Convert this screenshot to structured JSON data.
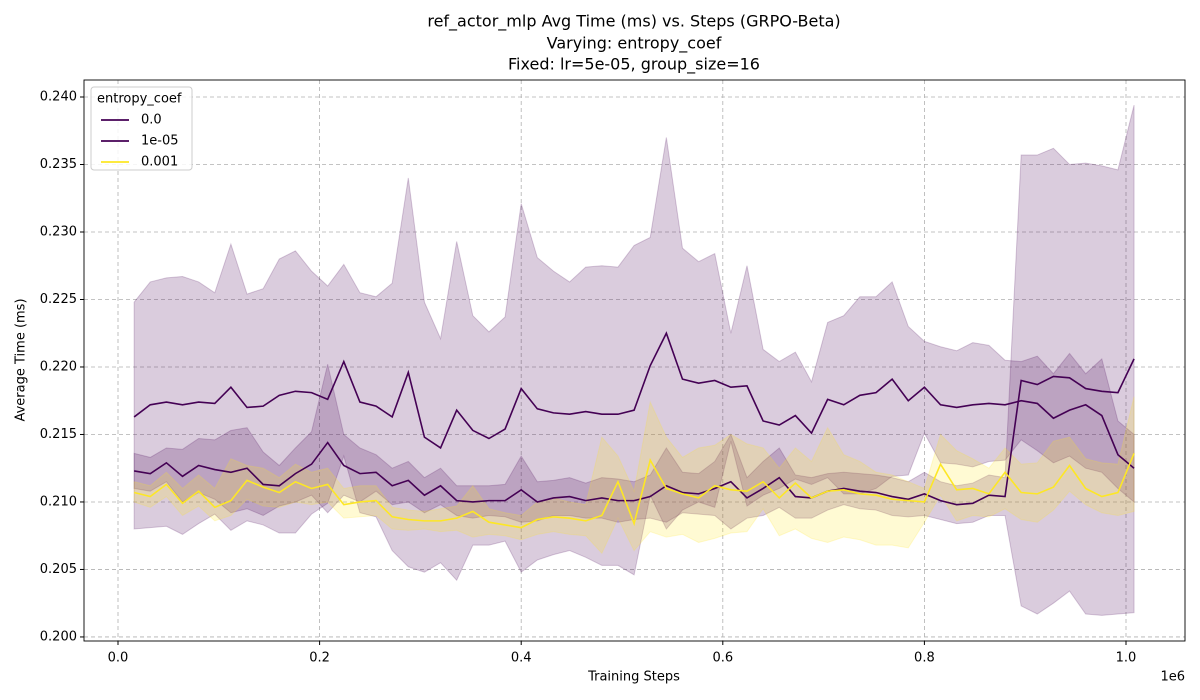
{
  "chart_data": {
    "type": "band-line",
    "title": "ref_actor_mlp Avg Time (ms) vs. Steps (GRPO-Beta)",
    "subtitle": "Varying: entropy_coef",
    "subtitle2": "Fixed: lr=5e-05, group_size=16",
    "x_label": "Training Steps",
    "y_label": "Average Time (ms)",
    "x_offset_label": "1e6",
    "legend_title": "entropy_coef",
    "legend_position": "upper left",
    "grid": true,
    "band_opacity": 0.2,
    "xlim": [
      -33730,
      1058530
    ],
    "ylim": [
      0.1997,
      0.24126
    ],
    "xticks": [
      {
        "value": 0,
        "label": "0.0"
      },
      {
        "value": 200000,
        "label": "0.2"
      },
      {
        "value": 400000,
        "label": "0.4"
      },
      {
        "value": 600000,
        "label": "0.6"
      },
      {
        "value": 800000,
        "label": "0.8"
      },
      {
        "value": 1000000,
        "label": "1.0"
      }
    ],
    "yticks": [
      {
        "value": 0.2,
        "label": "0.200"
      },
      {
        "value": 0.205,
        "label": "0.205"
      },
      {
        "value": 0.21,
        "label": "0.210"
      },
      {
        "value": 0.215,
        "label": "0.215"
      },
      {
        "value": 0.22,
        "label": "0.220"
      },
      {
        "value": 0.225,
        "label": "0.225"
      },
      {
        "value": 0.23,
        "label": "0.230"
      },
      {
        "value": 0.235,
        "label": "0.235"
      },
      {
        "value": 0.24,
        "label": "0.240"
      }
    ],
    "x": [
      16000,
      32000,
      48000,
      64000,
      80000,
      96000,
      112000,
      128000,
      144000,
      160000,
      176000,
      192000,
      208000,
      224000,
      240000,
      256000,
      272000,
      288000,
      304000,
      320000,
      336000,
      352000,
      368000,
      384000,
      400000,
      416000,
      432000,
      448000,
      464000,
      480000,
      496000,
      512000,
      528000,
      544000,
      560000,
      576000,
      592000,
      608000,
      624000,
      640000,
      656000,
      672000,
      688000,
      704000,
      720000,
      736000,
      752000,
      768000,
      784000,
      800000,
      816000,
      832000,
      848000,
      864000,
      880000,
      896000,
      912000,
      928000,
      944000,
      960000,
      976000,
      992000,
      1008000
    ],
    "series": [
      {
        "name": "0.0",
        "color": "#440154",
        "values": [
          0.2163,
          0.2172,
          0.2174,
          0.2172,
          0.2174,
          0.2173,
          0.2185,
          0.217,
          0.2171,
          0.2179,
          0.2182,
          0.2181,
          0.2176,
          0.2204,
          0.2174,
          0.2171,
          0.2163,
          0.2196,
          0.2148,
          0.214,
          0.2168,
          0.2153,
          0.2147,
          0.2154,
          0.2184,
          0.2169,
          0.2166,
          0.2165,
          0.2167,
          0.2165,
          0.2165,
          0.2168,
          0.2201,
          0.2225,
          0.2191,
          0.2188,
          0.219,
          0.2185,
          0.2186,
          0.216,
          0.2157,
          0.2164,
          0.2151,
          0.2176,
          0.2172,
          0.2179,
          0.2181,
          0.2191,
          0.2175,
          0.2185,
          0.2172,
          0.217,
          0.2172,
          0.2173,
          0.2172,
          0.2175,
          0.2173,
          0.2162,
          0.2168,
          0.2172,
          0.2164,
          0.2135,
          0.2125
        ],
        "upper": [
          0.2248,
          0.2263,
          0.2266,
          0.2267,
          0.2263,
          0.2255,
          0.2291,
          0.2254,
          0.2258,
          0.228,
          0.2286,
          0.2271,
          0.226,
          0.2276,
          0.2255,
          0.2252,
          0.2262,
          0.234,
          0.2248,
          0.2221,
          0.2293,
          0.2238,
          0.2226,
          0.2237,
          0.2321,
          0.2281,
          0.2271,
          0.2263,
          0.2274,
          0.2275,
          0.2274,
          0.229,
          0.2296,
          0.237,
          0.2288,
          0.2278,
          0.2284,
          0.2225,
          0.2275,
          0.2213,
          0.2204,
          0.2211,
          0.2189,
          0.2233,
          0.2238,
          0.2252,
          0.2252,
          0.2263,
          0.223,
          0.2219,
          0.2215,
          0.2212,
          0.2218,
          0.2216,
          0.2205,
          0.2204,
          0.2208,
          0.2195,
          0.221,
          0.2195,
          0.2206,
          0.216,
          0.215
        ],
        "lower": [
          0.208,
          0.2081,
          0.2082,
          0.2076,
          0.2084,
          0.2091,
          0.2079,
          0.2086,
          0.2083,
          0.2077,
          0.2077,
          0.2091,
          0.2099,
          0.2134,
          0.2092,
          0.2089,
          0.2064,
          0.2052,
          0.2048,
          0.2055,
          0.2042,
          0.2068,
          0.2068,
          0.2071,
          0.2048,
          0.2057,
          0.2061,
          0.2064,
          0.2059,
          0.2053,
          0.2053,
          0.2046,
          0.2105,
          0.208,
          0.2094,
          0.21,
          0.2096,
          0.2145,
          0.2097,
          0.2105,
          0.211,
          0.2117,
          0.2113,
          0.2118,
          0.2106,
          0.2106,
          0.211,
          0.2119,
          0.212,
          0.2151,
          0.2129,
          0.2128,
          0.2126,
          0.213,
          0.2131,
          0.2146,
          0.2138,
          0.2129,
          0.2134,
          0.2125,
          0.2122,
          0.211,
          0.21
        ]
      },
      {
        "name": "1e-05",
        "color": "#440154",
        "values": [
          0.2123,
          0.2121,
          0.2129,
          0.2119,
          0.2127,
          0.2124,
          0.2122,
          0.2125,
          0.2113,
          0.2112,
          0.2121,
          0.2128,
          0.2144,
          0.2127,
          0.2121,
          0.2122,
          0.2112,
          0.2116,
          0.2105,
          0.2112,
          0.2101,
          0.21,
          0.2101,
          0.2101,
          0.2109,
          0.21,
          0.2103,
          0.2104,
          0.2101,
          0.2103,
          0.2101,
          0.2101,
          0.2104,
          0.2112,
          0.2107,
          0.2106,
          0.211,
          0.2115,
          0.2103,
          0.211,
          0.2118,
          0.2104,
          0.2103,
          0.2108,
          0.211,
          0.2108,
          0.2107,
          0.2104,
          0.2102,
          0.2106,
          0.2101,
          0.2098,
          0.2099,
          0.2105,
          0.2104,
          0.219,
          0.2187,
          0.2193,
          0.2192,
          0.2184,
          0.2182,
          0.2181,
          0.2206
        ],
        "upper": [
          0.2136,
          0.2133,
          0.214,
          0.2139,
          0.2147,
          0.2146,
          0.2153,
          0.2155,
          0.2137,
          0.2127,
          0.214,
          0.2152,
          0.2202,
          0.215,
          0.214,
          0.2135,
          0.2125,
          0.213,
          0.2118,
          0.2125,
          0.2112,
          0.2112,
          0.2112,
          0.2113,
          0.2134,
          0.2115,
          0.2116,
          0.2118,
          0.2114,
          0.2118,
          0.2117,
          0.2115,
          0.212,
          0.214,
          0.2122,
          0.2121,
          0.213,
          0.215,
          0.2118,
          0.213,
          0.214,
          0.212,
          0.2118,
          0.2121,
          0.2122,
          0.2121,
          0.212,
          0.2118,
          0.2115,
          0.2122,
          0.2115,
          0.2112,
          0.2114,
          0.212,
          0.2118,
          0.2357,
          0.2357,
          0.2362,
          0.235,
          0.2351,
          0.2349,
          0.2346,
          0.2394
        ],
        "lower": [
          0.211,
          0.2108,
          0.2115,
          0.21,
          0.2107,
          0.2102,
          0.2092,
          0.2095,
          0.209,
          0.2097,
          0.21,
          0.2105,
          0.2092,
          0.2105,
          0.21,
          0.2108,
          0.2098,
          0.21,
          0.2092,
          0.2098,
          0.209,
          0.2088,
          0.209,
          0.2089,
          0.2085,
          0.2086,
          0.209,
          0.209,
          0.2088,
          0.2088,
          0.2085,
          0.2087,
          0.2088,
          0.2085,
          0.2092,
          0.2091,
          0.209,
          0.208,
          0.2088,
          0.209,
          0.2096,
          0.2088,
          0.2088,
          0.2094,
          0.2098,
          0.2095,
          0.2094,
          0.209,
          0.2089,
          0.209,
          0.2087,
          0.2084,
          0.2085,
          0.209,
          0.209,
          0.2023,
          0.2017,
          0.2025,
          0.2034,
          0.2017,
          0.2016,
          0.2017,
          0.2018
        ]
      },
      {
        "name": "0.001",
        "color": "#fde725",
        "values": [
          0.2107,
          0.2104,
          0.2113,
          0.2099,
          0.2108,
          0.2096,
          0.2101,
          0.2116,
          0.2111,
          0.2107,
          0.2115,
          0.211,
          0.2113,
          0.2098,
          0.21,
          0.2101,
          0.2089,
          0.2087,
          0.2086,
          0.2086,
          0.2088,
          0.2093,
          0.2085,
          0.2083,
          0.2081,
          0.2087,
          0.2089,
          0.2088,
          0.2086,
          0.209,
          0.2115,
          0.2084,
          0.2131,
          0.211,
          0.2106,
          0.2103,
          0.2112,
          0.2109,
          0.2108,
          0.2115,
          0.2103,
          0.2114,
          0.2103,
          0.2108,
          0.2109,
          0.2106,
          0.2105,
          0.2102,
          0.2101,
          0.21,
          0.2128,
          0.2109,
          0.211,
          0.2106,
          0.2122,
          0.2107,
          0.2106,
          0.2111,
          0.2127,
          0.211,
          0.2104,
          0.2107,
          0.2136
        ],
        "upper": [
          0.2115,
          0.2112,
          0.2122,
          0.211,
          0.212,
          0.211,
          0.2132,
          0.2127,
          0.2125,
          0.2118,
          0.2128,
          0.2122,
          0.2125,
          0.211,
          0.2112,
          0.2112,
          0.2096,
          0.2094,
          0.2093,
          0.2095,
          0.2097,
          0.2112,
          0.2095,
          0.2092,
          0.209,
          0.21,
          0.2103,
          0.21,
          0.2098,
          0.2148,
          0.2134,
          0.2108,
          0.2174,
          0.2148,
          0.2133,
          0.214,
          0.2142,
          0.215,
          0.2143,
          0.214,
          0.2125,
          0.214,
          0.213,
          0.2155,
          0.2135,
          0.213,
          0.2122,
          0.212,
          0.2115,
          0.211,
          0.215,
          0.2138,
          0.2132,
          0.2125,
          0.214,
          0.2128,
          0.2129,
          0.2145,
          0.2148,
          0.2132,
          0.2129,
          0.2128,
          0.2178
        ],
        "lower": [
          0.21,
          0.2096,
          0.2104,
          0.209,
          0.2097,
          0.2086,
          0.209,
          0.2102,
          0.2097,
          0.2096,
          0.21,
          0.2098,
          0.21,
          0.2088,
          0.2089,
          0.209,
          0.208,
          0.2079,
          0.208,
          0.2078,
          0.2079,
          0.2074,
          0.2076,
          0.2075,
          0.2072,
          0.2076,
          0.2078,
          0.2076,
          0.2075,
          0.2062,
          0.2088,
          0.2064,
          0.2078,
          0.2074,
          0.2076,
          0.207,
          0.2073,
          0.2077,
          0.2078,
          0.2095,
          0.2075,
          0.208,
          0.2073,
          0.207,
          0.2074,
          0.2072,
          0.2068,
          0.2068,
          0.2066,
          0.2085,
          0.2105,
          0.2086,
          0.209,
          0.2089,
          0.2095,
          0.2087,
          0.2085,
          0.2094,
          0.2108,
          0.2098,
          0.2092,
          0.209,
          0.2093
        ]
      }
    ]
  }
}
